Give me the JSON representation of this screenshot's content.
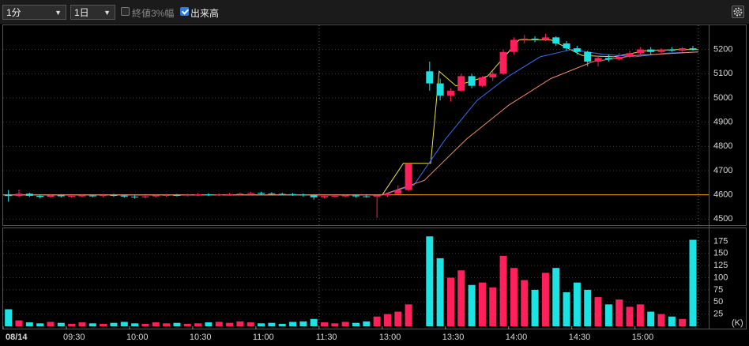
{
  "toolbar": {
    "interval": "1分",
    "range": "1日",
    "options": [
      {
        "label": "終値3%幅",
        "checked": false
      },
      {
        "label": "出来高",
        "checked": true
      }
    ]
  },
  "chart_data": [
    {
      "type": "candlestick",
      "up_color": "#ff1f5a",
      "down_color": "#19e3e3",
      "xlim": [
        0,
        335
      ],
      "ylim": [
        4475,
        5300
      ],
      "yticks": [
        4500,
        4600,
        4700,
        4800,
        4900,
        5000,
        5100,
        5200
      ],
      "grid": true,
      "session_breaks": [
        150,
        330
      ],
      "reference_line": {
        "value": 4600,
        "color": "#ffa500"
      },
      "x": [
        2.5,
        7.5,
        12.5,
        17.5,
        22.5,
        27.5,
        32.5,
        37.5,
        42.5,
        47.5,
        52.5,
        57.5,
        62.5,
        67.5,
        72.5,
        77.5,
        82.5,
        87.5,
        92.5,
        97.5,
        102.5,
        107.5,
        112.5,
        117.5,
        122.5,
        127.5,
        132.5,
        137.5,
        142.5,
        147.5,
        152.5,
        157.5,
        162.5,
        167.5,
        172.5,
        177.5,
        182.5,
        187.5,
        192.5,
        197.5,
        202.5,
        207.5,
        212.5,
        217.5,
        222.5,
        227.5,
        232.5,
        237.5,
        242.5,
        247.5,
        252.5,
        257.5,
        262.5,
        267.5,
        272.5,
        277.5,
        282.5,
        287.5,
        292.5,
        297.5,
        302.5,
        307.5,
        312.5,
        317.5,
        322.5,
        327.5
      ],
      "open": [
        4600,
        4595,
        4605,
        4596,
        4592,
        4598,
        4594,
        4596,
        4597,
        4595,
        4599,
        4597,
        4593,
        4590,
        4594,
        4597,
        4599,
        4598,
        4600,
        4602,
        4600,
        4601,
        4603,
        4605,
        4608,
        4606,
        4604,
        4603,
        4601,
        4598,
        4590,
        4595,
        4596,
        4597,
        4594,
        4593,
        4598,
        4605,
        4620,
        null,
        5110,
        5060,
        5010,
        5030,
        5090,
        5050,
        5085,
        5100,
        5190,
        5240,
        5245,
        5240,
        5250,
        5225,
        5205,
        5190,
        5150,
        5165,
        5160,
        5170,
        5185,
        5200,
        5190,
        5200,
        5195,
        5205
      ],
      "high": [
        4620,
        4622,
        4609,
        4602,
        4603,
        4603,
        4600,
        4602,
        4602,
        4604,
        4604,
        4602,
        4598,
        4599,
        4602,
        4604,
        4604,
        4605,
        4607,
        4607,
        4606,
        4608,
        4610,
        4613,
        4613,
        4611,
        4609,
        4608,
        4606,
        4603,
        4600,
        4600,
        4601,
        4602,
        4599,
        4600,
        4610,
        4640,
        4732,
        null,
        5150,
        5080,
        5040,
        5100,
        5100,
        5090,
        5110,
        5200,
        5250,
        5260,
        5255,
        5265,
        5255,
        5235,
        5215,
        5195,
        5175,
        5180,
        5185,
        5195,
        5210,
        5210,
        5205,
        5210,
        5210,
        5215
      ],
      "low": [
        4572,
        4590,
        4591,
        4586,
        4588,
        4589,
        4588,
        4590,
        4590,
        4590,
        4592,
        4588,
        4584,
        4585,
        4589,
        4592,
        4593,
        4593,
        4595,
        4595,
        4595,
        4596,
        4598,
        4600,
        4600,
        4598,
        4598,
        4596,
        4592,
        4580,
        4585,
        4590,
        4591,
        4589,
        4588,
        4505,
        4592,
        4600,
        4615,
        null,
        5030,
        4990,
        4985,
        5025,
        5040,
        5045,
        5070,
        5095,
        5180,
        5225,
        5230,
        5235,
        5215,
        5195,
        5180,
        5130,
        5130,
        5150,
        5155,
        5165,
        5175,
        5180,
        5185,
        5190,
        5190,
        5195
      ],
      "close": [
        4595,
        4605,
        4596,
        4592,
        4598,
        4594,
        4596,
        4597,
        4595,
        4599,
        4597,
        4593,
        4590,
        4594,
        4597,
        4599,
        4598,
        4600,
        4602,
        4600,
        4601,
        4603,
        4605,
        4608,
        4606,
        4604,
        4603,
        4601,
        4598,
        4590,
        4595,
        4596,
        4597,
        4594,
        4593,
        4598,
        4605,
        4620,
        4730,
        null,
        5060,
        5010,
        5030,
        5090,
        5050,
        5085,
        5100,
        5190,
        5240,
        5245,
        5240,
        5250,
        5225,
        5205,
        5190,
        5150,
        5165,
        5160,
        5170,
        5185,
        5200,
        5190,
        5200,
        5195,
        5205,
        5200
      ],
      "lines": [
        {
          "color": "#e8e04a",
          "x": [
            0,
            180,
            190,
            203,
            207,
            215,
            230,
            245,
            260,
            275,
            290,
            305,
            320,
            330
          ],
          "values": [
            4600,
            4600,
            4730,
            4730,
            5110,
            5050,
            5090,
            5240,
            5240,
            5175,
            5170,
            5195,
            5200,
            5200
          ]
        },
        {
          "color": "#3a6cf0",
          "x": [
            0,
            180,
            195,
            210,
            225,
            240,
            255,
            270,
            285,
            300,
            315,
            330
          ],
          "values": [
            4600,
            4600,
            4640,
            4830,
            4990,
            5090,
            5170,
            5200,
            5180,
            5170,
            5185,
            5190
          ]
        },
        {
          "color": "#f08a6a",
          "x": [
            0,
            180,
            200,
            220,
            240,
            260,
            280,
            300,
            330
          ],
          "values": [
            4600,
            4600,
            4660,
            4830,
            4970,
            5080,
            5150,
            5175,
            5190
          ]
        }
      ]
    },
    {
      "type": "volume",
      "unit_label": "(K)",
      "xlim": [
        0,
        335
      ],
      "ylim": [
        0,
        200
      ],
      "yticks": [
        25,
        50,
        75,
        100,
        125,
        150,
        175
      ],
      "grid": true,
      "xticks": [
        {
          "value": 0,
          "label": "08/14"
        },
        {
          "value": 30,
          "label": "09:30"
        },
        {
          "value": 60,
          "label": "10:00"
        },
        {
          "value": 90,
          "label": "10:30"
        },
        {
          "value": 120,
          "label": "11:00"
        },
        {
          "value": 150,
          "label": "11:30"
        },
        {
          "value": 180,
          "label": "13:00"
        },
        {
          "value": 210,
          "label": "13:30"
        },
        {
          "value": 240,
          "label": "14:00"
        },
        {
          "value": 270,
          "label": "14:30"
        },
        {
          "value": 300,
          "label": "15:00"
        }
      ],
      "x": [
        2.5,
        7.5,
        12.5,
        17.5,
        22.5,
        27.5,
        32.5,
        37.5,
        42.5,
        47.5,
        52.5,
        57.5,
        62.5,
        67.5,
        72.5,
        77.5,
        82.5,
        87.5,
        92.5,
        97.5,
        102.5,
        107.5,
        112.5,
        117.5,
        122.5,
        127.5,
        132.5,
        137.5,
        142.5,
        147.5,
        152.5,
        157.5,
        162.5,
        167.5,
        172.5,
        177.5,
        182.5,
        187.5,
        192.5,
        197.5,
        202.5,
        207.5,
        212.5,
        217.5,
        222.5,
        227.5,
        232.5,
        237.5,
        242.5,
        247.5,
        252.5,
        257.5,
        262.5,
        267.5,
        272.5,
        277.5,
        282.5,
        287.5,
        292.5,
        297.5,
        302.5,
        307.5,
        312.5,
        317.5,
        322.5,
        327.5
      ],
      "values": [
        35,
        12,
        8,
        6,
        9,
        7,
        5,
        8,
        6,
        5,
        7,
        9,
        6,
        5,
        8,
        6,
        7,
        5,
        6,
        8,
        9,
        7,
        10,
        8,
        6,
        7,
        5,
        9,
        10,
        15,
        8,
        6,
        9,
        7,
        10,
        20,
        25,
        30,
        45,
        null,
        185,
        140,
        100,
        115,
        85,
        90,
        80,
        145,
        120,
        95,
        75,
        110,
        120,
        70,
        90,
        75,
        60,
        45,
        55,
        40,
        45,
        30,
        25,
        20,
        15,
        178
      ]
    }
  ]
}
